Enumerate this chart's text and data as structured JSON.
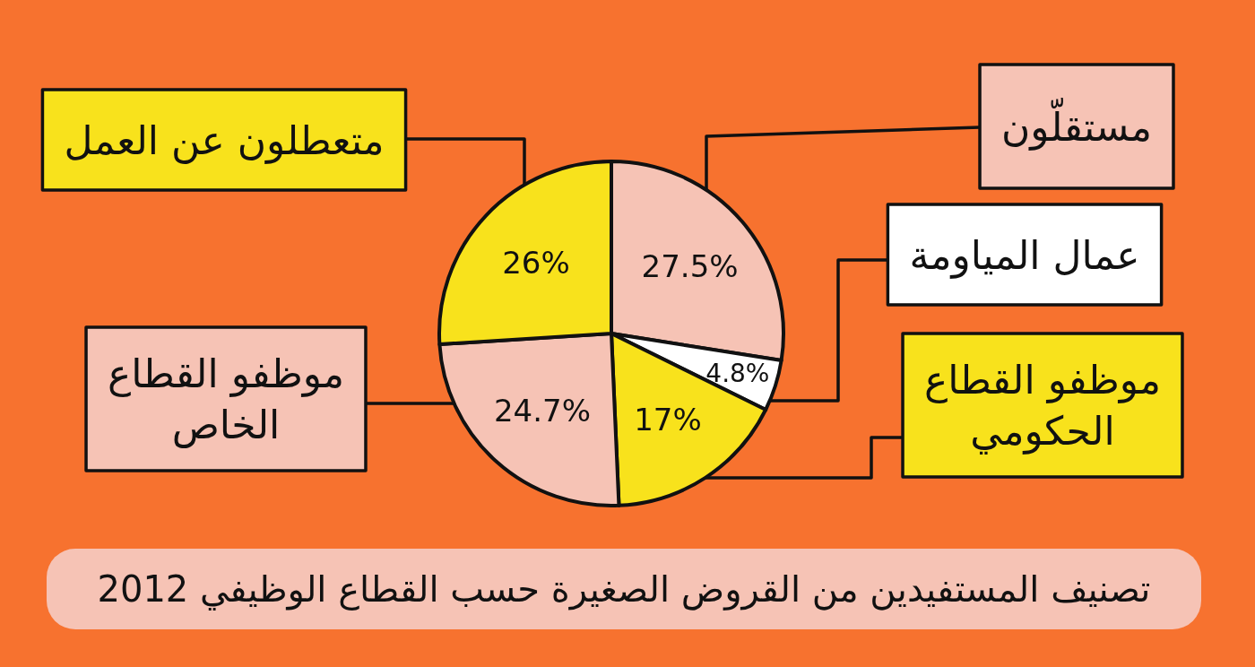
{
  "chart_data": {
    "type": "pie",
    "title": "تصنيف المستفيدين من القروض الصغيرة حسب القطاع الوظيفي 2012",
    "categories": [
      "مستقلّون",
      "عمال المياومة",
      "موظفو القطاع الحكومي",
      "موظفو القطاع الخاص",
      "متعطلون عن العمل"
    ],
    "values": [
      27.5,
      4.8,
      17,
      24.7,
      26
    ],
    "value_labels": [
      "27.5%",
      "4.8%",
      "17%",
      "24.7%",
      "26%"
    ],
    "colors": [
      "#f6c3b5",
      "#ffffff",
      "#f8e21c",
      "#f6c3b5",
      "#f8e21c"
    ]
  }
}
